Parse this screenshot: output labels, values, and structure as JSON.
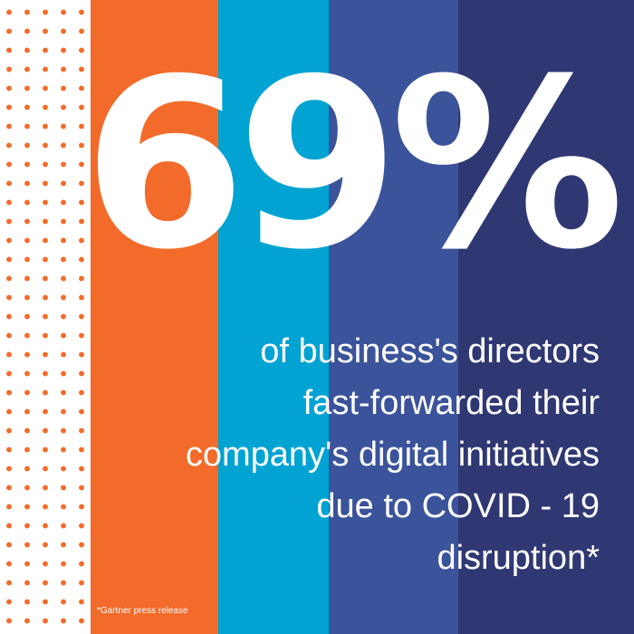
{
  "colors": {
    "dot_orange": "#f26b2a",
    "stripe_orange": "#f26b2a",
    "stripe_cyan": "#00a3d2",
    "stripe_blue": "#3b539a",
    "stripe_navy": "#2f3872",
    "text": "#ffffff"
  },
  "stat": {
    "value": "69%"
  },
  "caption": {
    "lines": [
      "of business's directors",
      "fast-forwarded their",
      "company's digital initiatives",
      "due to COVID - 19",
      "disruption*"
    ]
  },
  "source": {
    "note": "*Gartner press release"
  }
}
